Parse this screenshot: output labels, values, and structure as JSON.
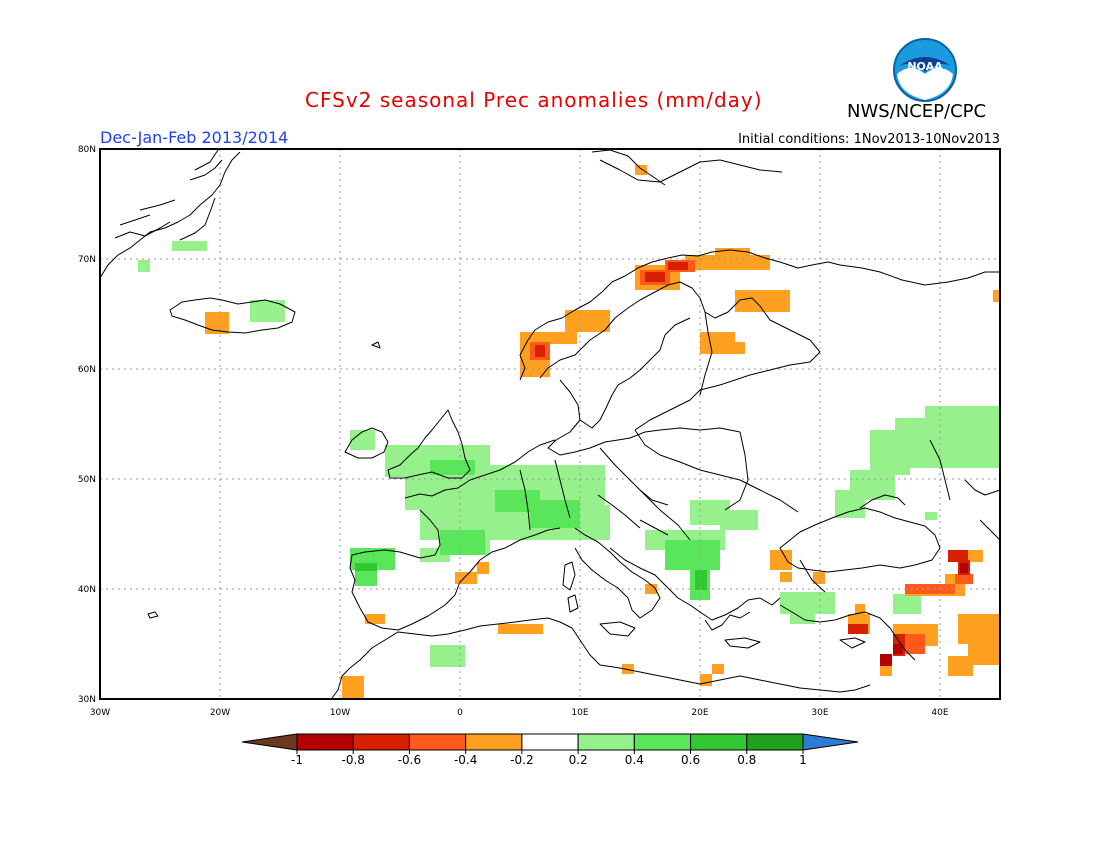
{
  "header": {
    "title": "CFSv2 seasonal Prec anomalies (mm/day)",
    "agency": "NWS/NCEP/CPC",
    "season": "Dec-Jan-Feb 2013/2014",
    "initial_conditions": "Initial conditions: 1Nov2013-10Nov2013",
    "logo_text": "NOAA"
  },
  "map": {
    "lon_range": [
      -30,
      45
    ],
    "lat_range": [
      30,
      80
    ],
    "lon_labels": [
      "30W",
      "20W",
      "10W",
      "0",
      "10E",
      "20E",
      "30E",
      "40E"
    ],
    "lat_labels": [
      "30N",
      "40N",
      "50N",
      "60N",
      "70N",
      "80N"
    ]
  },
  "colorbar": {
    "labels": [
      "-1",
      "-0.8",
      "-0.6",
      "-0.4",
      "-0.2",
      "0.2",
      "0.4",
      "0.6",
      "0.8",
      "1"
    ],
    "colors": [
      "#6b3a1e",
      "#b50000",
      "#d62000",
      "#ff5a1a",
      "#ffa020",
      "#ffffff",
      "#96f08c",
      "#5ae65a",
      "#32c832",
      "#1ea01e",
      "#2e7bd6"
    ]
  }
}
